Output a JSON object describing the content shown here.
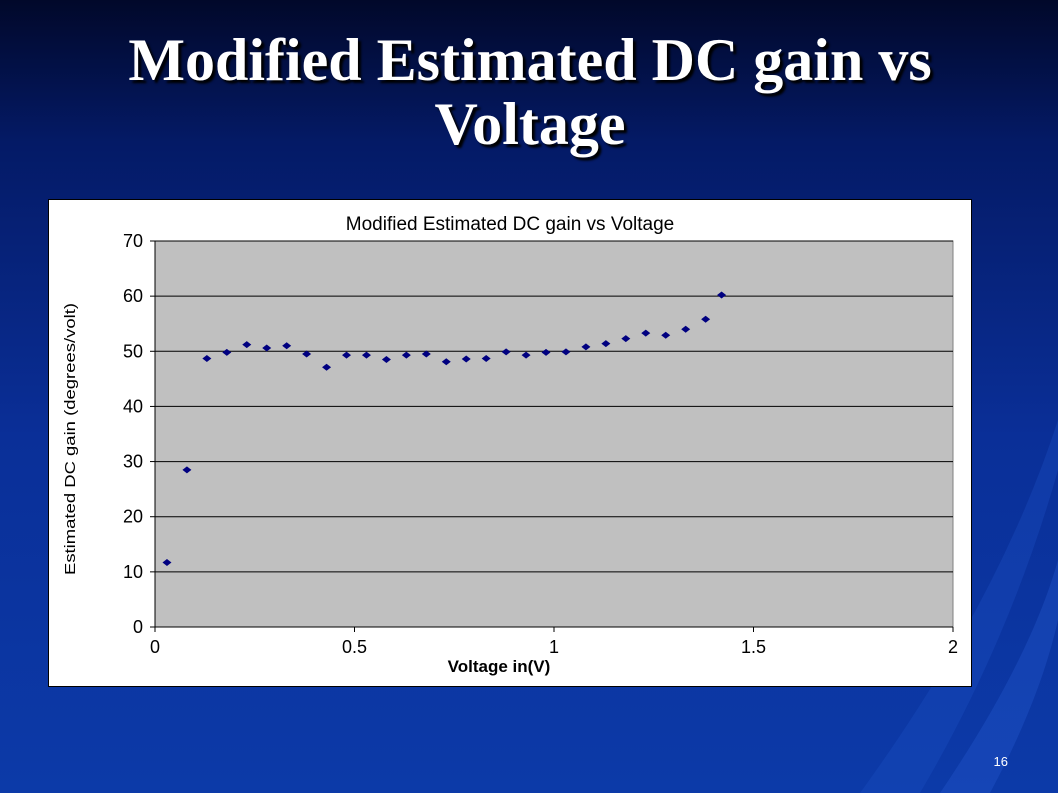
{
  "slide": {
    "title": "Modified Estimated DC gain vs Voltage",
    "page_number": "16"
  },
  "colors": {
    "plot_area": "#c0c0c0",
    "marker": "#000080",
    "gridline": "#000000"
  },
  "chart_data": {
    "type": "scatter",
    "title": "Modified Estimated DC gain vs Voltage",
    "xlabel": "Voltage in(V)",
    "ylabel": "Estimated DC gain (degrees/volt)",
    "xlim": [
      0,
      2
    ],
    "ylim": [
      0,
      70
    ],
    "xticks": [
      "0",
      "0.5",
      "1",
      "1.5",
      "2"
    ],
    "yticks": [
      "0",
      "10",
      "20",
      "30",
      "40",
      "50",
      "60",
      "70"
    ],
    "grid": "horizontal",
    "legend": "none",
    "points": [
      [
        0.03,
        11.7
      ],
      [
        0.08,
        28.5
      ],
      [
        0.13,
        48.7
      ],
      [
        0.18,
        49.8
      ],
      [
        0.23,
        51.2
      ],
      [
        0.28,
        50.6
      ],
      [
        0.33,
        51.0
      ],
      [
        0.38,
        49.5
      ],
      [
        0.43,
        47.1
      ],
      [
        0.48,
        49.3
      ],
      [
        0.53,
        49.3
      ],
      [
        0.58,
        48.5
      ],
      [
        0.63,
        49.3
      ],
      [
        0.68,
        49.5
      ],
      [
        0.73,
        48.1
      ],
      [
        0.78,
        48.6
      ],
      [
        0.83,
        48.7
      ],
      [
        0.88,
        49.9
      ],
      [
        0.93,
        49.3
      ],
      [
        0.98,
        49.8
      ],
      [
        1.03,
        49.9
      ],
      [
        1.08,
        50.8
      ],
      [
        1.13,
        51.4
      ],
      [
        1.18,
        52.3
      ],
      [
        1.23,
        53.3
      ],
      [
        1.28,
        52.9
      ],
      [
        1.33,
        54.0
      ],
      [
        1.38,
        55.8
      ],
      [
        1.42,
        60.2
      ]
    ]
  }
}
